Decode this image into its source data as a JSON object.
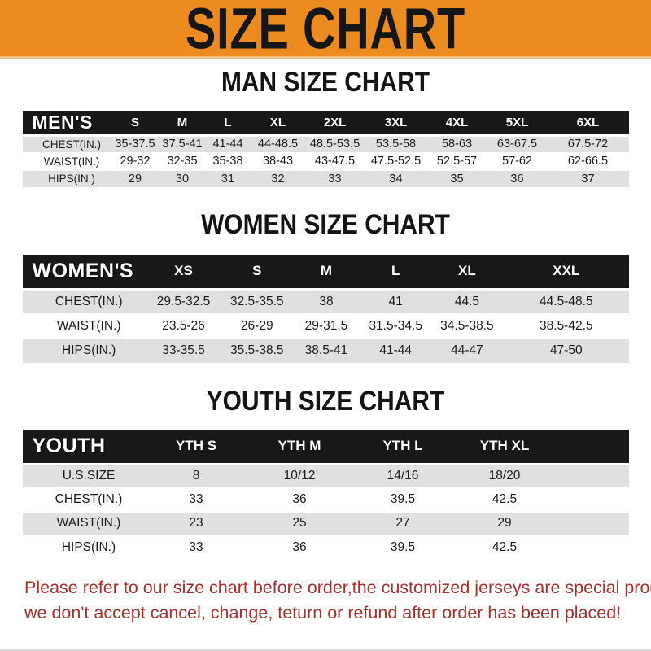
{
  "banner": {
    "title": "SIZE CHART",
    "bg_color": "#EC8B20",
    "text_color": "#161616"
  },
  "sections": [
    {
      "heading": "MAN SIZE CHART",
      "brand": "MEN'S",
      "columns": [
        "S",
        "M",
        "L",
        "XL",
        "2XL",
        "3XL",
        "4XL",
        "5XL",
        "6XL"
      ],
      "rows": [
        {
          "label": "CHEST(IN.)",
          "values": [
            "35-37.5",
            "37.5-41",
            "41-44",
            "44-48.5",
            "48.5-53.5",
            "53.5-58",
            "58-63",
            "63-67.5",
            "67.5-72"
          ]
        },
        {
          "label": "WAIST(IN.)",
          "values": [
            "29-32",
            "32-35",
            "35-38",
            "38-43",
            "43-47.5",
            "47.5-52.5",
            "52.5-57",
            "57-62",
            "62-66.5"
          ]
        },
        {
          "label": "HIPS(IN.)",
          "values": [
            "29",
            "30",
            "31",
            "32",
            "33",
            "34",
            "35",
            "36",
            "37"
          ]
        }
      ]
    },
    {
      "heading": "WOMEN SIZE CHART",
      "brand": "WOMEN'S",
      "columns": [
        "XS",
        "S",
        "M",
        "L",
        "XL",
        "XXL"
      ],
      "rows": [
        {
          "label": "CHEST(IN.)",
          "values": [
            "29.5-32.5",
            "32.5-35.5",
            "38",
            "41",
            "44.5",
            "44.5-48.5"
          ]
        },
        {
          "label": "WAIST(IN.)",
          "values": [
            "23.5-26",
            "26-29",
            "29-31.5",
            "31.5-34.5",
            "34.5-38.5",
            "38.5-42.5"
          ]
        },
        {
          "label": "HIPS(IN.)",
          "values": [
            "33-35.5",
            "35.5-38.5",
            "38.5-41",
            "41-44",
            "44-47",
            "47-50"
          ]
        }
      ]
    },
    {
      "heading": "YOUTH SIZE CHART",
      "brand": "YOUTH",
      "columns": [
        "YTH S",
        "YTH M",
        "YTH L",
        "YTH XL"
      ],
      "rows": [
        {
          "label": "U.S.SIZE",
          "values": [
            "8",
            "10/12",
            "14/16",
            "18/20"
          ]
        },
        {
          "label": "CHEST(IN.)",
          "values": [
            "33",
            "36",
            "39.5",
            "42.5"
          ]
        },
        {
          "label": "WAIST(IN.)",
          "values": [
            "23",
            "25",
            "27",
            "29"
          ]
        },
        {
          "label": "HIPS(IN.)",
          "values": [
            "33",
            "36",
            "39.5",
            "42.5"
          ]
        }
      ]
    }
  ],
  "footer": {
    "line1": "Please refer to our size chart before order,the customized jerseys are special products,",
    "line2": "we don't accept cancel, change, teturn or refund after order has been placed!",
    "text_color": "#A5302B"
  },
  "colors": {
    "header_bar": "#181818",
    "row_shaded": "#E0E0E0",
    "row_plain": "#FFFFFF"
  }
}
